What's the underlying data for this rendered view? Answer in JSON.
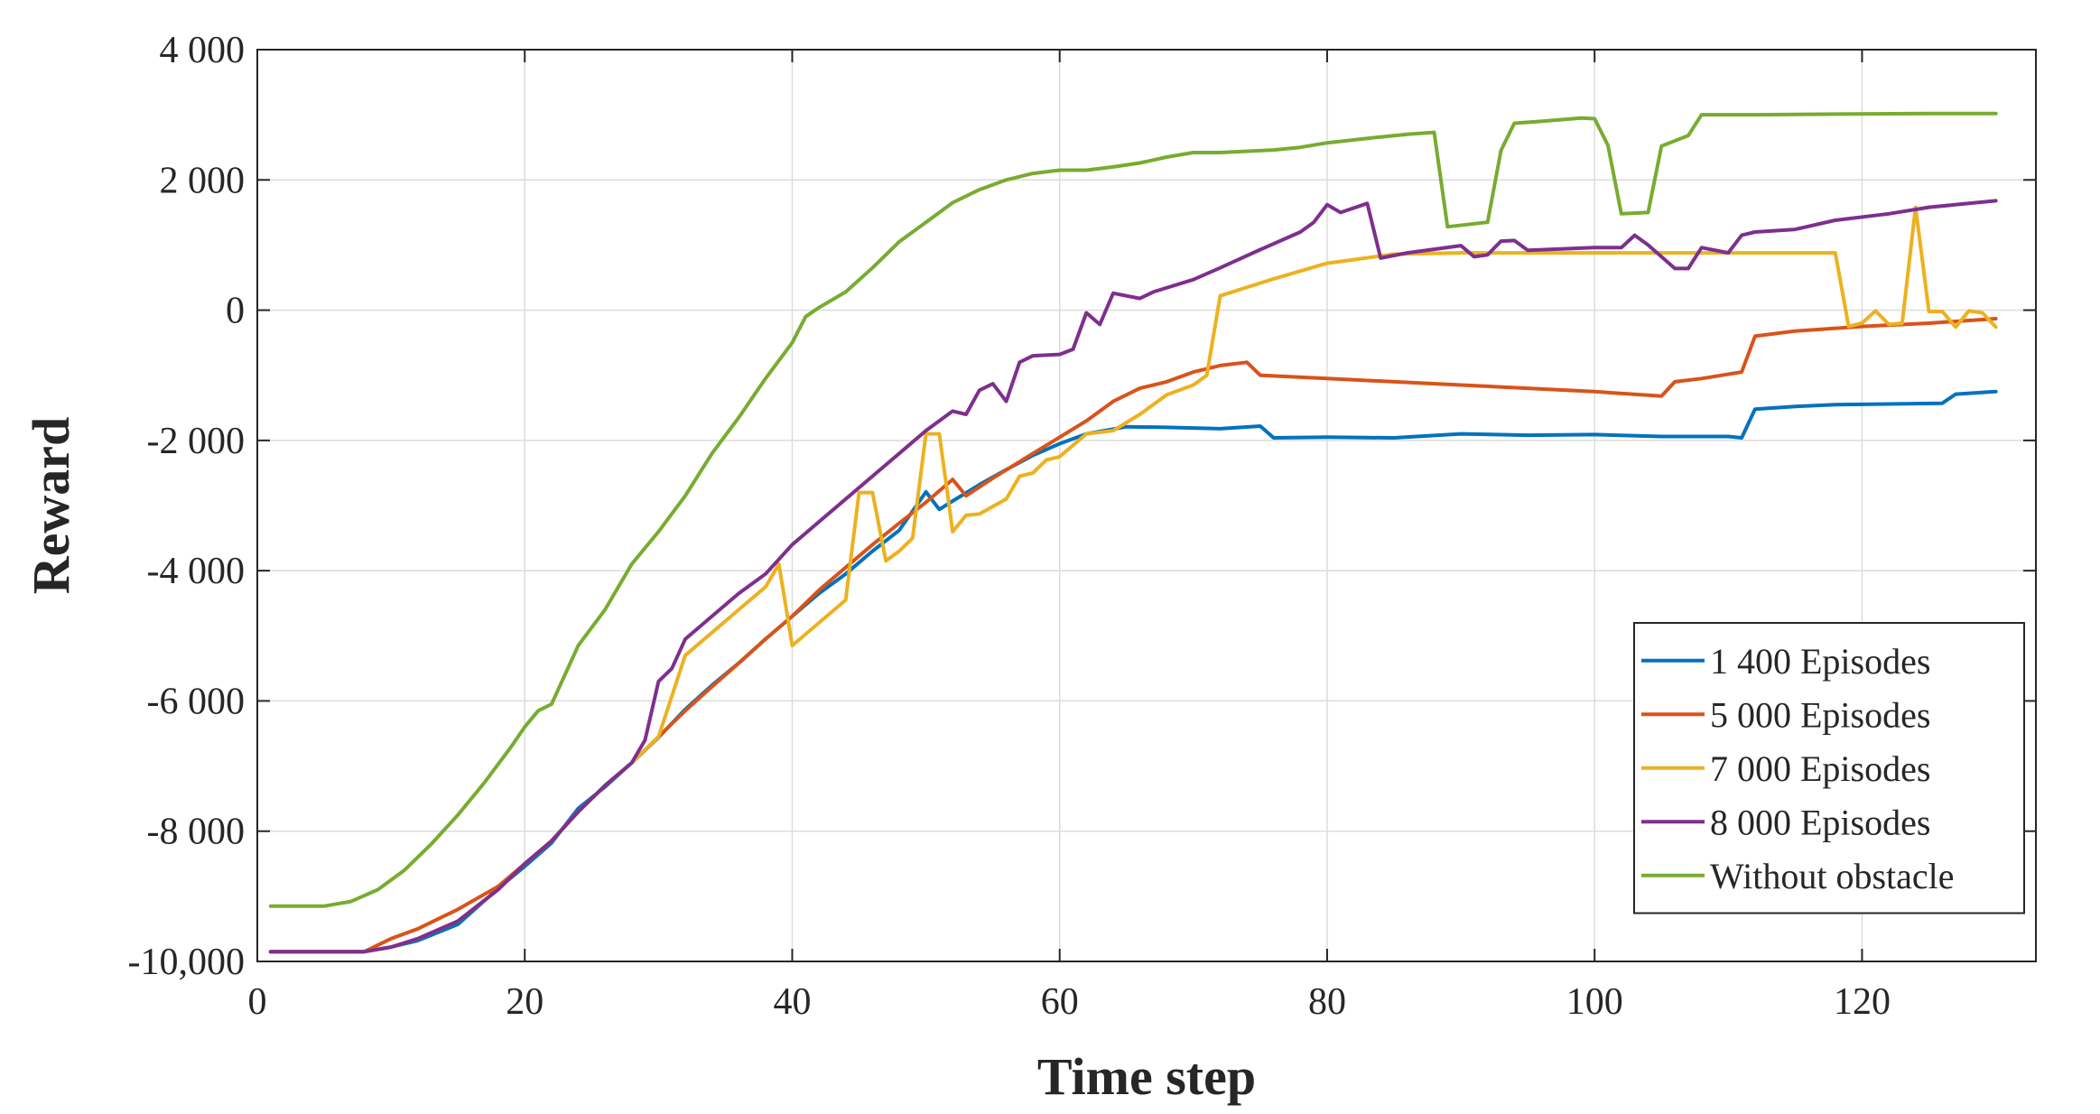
{
  "chart_data": {
    "type": "line",
    "xlabel": "Time step",
    "ylabel": "Reward",
    "xlim": [
      0,
      133
    ],
    "ylim": [
      -10000,
      4000
    ],
    "xticks": [
      0,
      20,
      40,
      60,
      80,
      100,
      120
    ],
    "xtick_labels": [
      "0",
      "20",
      "40",
      "60",
      "80",
      "100",
      "120"
    ],
    "yticks": [
      4000,
      2000,
      0,
      -2000,
      -4000,
      -6000,
      -8000,
      -10000
    ],
    "ytick_labels": [
      "4 000",
      "2 000",
      "0",
      "-2 000",
      "-4 000",
      "-6 000",
      "-8 000",
      "-10,000"
    ],
    "grid": true,
    "legend_position": "bottom-right",
    "series": [
      {
        "name": "1 400 Episodes",
        "color": "#0072BD",
        "points": [
          [
            1,
            -9850
          ],
          [
            8,
            -9850
          ],
          [
            10,
            -9780
          ],
          [
            12,
            -9680
          ],
          [
            15,
            -9430
          ],
          [
            18,
            -8880
          ],
          [
            20,
            -8540
          ],
          [
            22,
            -8180
          ],
          [
            24,
            -7650
          ],
          [
            26,
            -7320
          ],
          [
            28,
            -6950
          ],
          [
            30,
            -6560
          ],
          [
            32,
            -6130
          ],
          [
            34,
            -5760
          ],
          [
            36,
            -5420
          ],
          [
            38,
            -5050
          ],
          [
            40,
            -4700
          ],
          [
            42,
            -4350
          ],
          [
            44,
            -4050
          ],
          [
            46,
            -3700
          ],
          [
            48,
            -3380
          ],
          [
            50,
            -2790
          ],
          [
            51,
            -3060
          ],
          [
            52,
            -2930
          ],
          [
            54,
            -2680
          ],
          [
            56,
            -2450
          ],
          [
            58,
            -2230
          ],
          [
            60,
            -2050
          ],
          [
            62,
            -1900
          ],
          [
            65,
            -1790
          ],
          [
            68,
            -1800
          ],
          [
            72,
            -1820
          ],
          [
            75,
            -1780
          ],
          [
            76,
            -1960
          ],
          [
            80,
            -1950
          ],
          [
            85,
            -1960
          ],
          [
            90,
            -1900
          ],
          [
            95,
            -1920
          ],
          [
            100,
            -1910
          ],
          [
            105,
            -1940
          ],
          [
            110,
            -1940
          ],
          [
            111,
            -1960
          ],
          [
            112,
            -1520
          ],
          [
            115,
            -1480
          ],
          [
            118,
            -1450
          ],
          [
            122,
            -1440
          ],
          [
            126,
            -1430
          ],
          [
            127,
            -1290
          ],
          [
            130,
            -1250
          ]
        ]
      },
      {
        "name": "5 000 Episodes",
        "color": "#D95319",
        "points": [
          [
            1,
            -9850
          ],
          [
            8,
            -9850
          ],
          [
            10,
            -9650
          ],
          [
            12,
            -9500
          ],
          [
            15,
            -9200
          ],
          [
            18,
            -8850
          ],
          [
            20,
            -8500
          ],
          [
            22,
            -8150
          ],
          [
            24,
            -7700
          ],
          [
            26,
            -7300
          ],
          [
            28,
            -6950
          ],
          [
            30,
            -6550
          ],
          [
            32,
            -6150
          ],
          [
            34,
            -5780
          ],
          [
            36,
            -5420
          ],
          [
            38,
            -5050
          ],
          [
            40,
            -4700
          ],
          [
            42,
            -4300
          ],
          [
            44,
            -3950
          ],
          [
            46,
            -3600
          ],
          [
            48,
            -3270
          ],
          [
            50,
            -2950
          ],
          [
            52,
            -2600
          ],
          [
            53,
            -2850
          ],
          [
            55,
            -2580
          ],
          [
            58,
            -2200
          ],
          [
            60,
            -1950
          ],
          [
            62,
            -1700
          ],
          [
            64,
            -1400
          ],
          [
            66,
            -1200
          ],
          [
            68,
            -1100
          ],
          [
            70,
            -950
          ],
          [
            72,
            -850
          ],
          [
            74,
            -800
          ],
          [
            75,
            -1000
          ],
          [
            80,
            -1050
          ],
          [
            90,
            -1150
          ],
          [
            100,
            -1250
          ],
          [
            105,
            -1320
          ],
          [
            106,
            -1100
          ],
          [
            108,
            -1050
          ],
          [
            111,
            -950
          ],
          [
            112,
            -400
          ],
          [
            115,
            -320
          ],
          [
            120,
            -250
          ],
          [
            125,
            -200
          ],
          [
            130,
            -130
          ]
        ]
      },
      {
        "name": "7 000 Episodes",
        "color": "#EDB120",
        "points": [
          [
            1,
            -9850
          ],
          [
            8,
            -9850
          ],
          [
            10,
            -9780
          ],
          [
            12,
            -9650
          ],
          [
            15,
            -9380
          ],
          [
            18,
            -8900
          ],
          [
            20,
            -8500
          ],
          [
            22,
            -8150
          ],
          [
            24,
            -7700
          ],
          [
            26,
            -7300
          ],
          [
            28,
            -6950
          ],
          [
            30,
            -6550
          ],
          [
            32,
            -5300
          ],
          [
            34,
            -4950
          ],
          [
            36,
            -4600
          ],
          [
            38,
            -4250
          ],
          [
            39,
            -3900
          ],
          [
            40,
            -5150
          ],
          [
            42,
            -4800
          ],
          [
            44,
            -4450
          ],
          [
            45,
            -2800
          ],
          [
            46,
            -2800
          ],
          [
            47,
            -3850
          ],
          [
            48,
            -3700
          ],
          [
            49,
            -3500
          ],
          [
            50,
            -1900
          ],
          [
            51,
            -1900
          ],
          [
            52,
            -3400
          ],
          [
            53,
            -3150
          ],
          [
            54,
            -3130
          ],
          [
            56,
            -2900
          ],
          [
            57,
            -2550
          ],
          [
            58,
            -2500
          ],
          [
            59,
            -2300
          ],
          [
            60,
            -2250
          ],
          [
            62,
            -1900
          ],
          [
            64,
            -1850
          ],
          [
            66,
            -1600
          ],
          [
            68,
            -1300
          ],
          [
            70,
            -1150
          ],
          [
            71,
            -1000
          ],
          [
            72,
            220
          ],
          [
            76,
            480
          ],
          [
            80,
            720
          ],
          [
            85,
            860
          ],
          [
            90,
            880
          ],
          [
            100,
            880
          ],
          [
            110,
            880
          ],
          [
            118,
            880
          ],
          [
            119,
            -250
          ],
          [
            120,
            -200
          ],
          [
            121,
            -10
          ],
          [
            122,
            -220
          ],
          [
            123,
            -200
          ],
          [
            124,
            1580
          ],
          [
            125,
            -20
          ],
          [
            126,
            -20
          ],
          [
            127,
            -260
          ],
          [
            128,
            -10
          ],
          [
            129,
            -40
          ],
          [
            130,
            -260
          ]
        ]
      },
      {
        "name": "8 000 Episodes",
        "color": "#7E2F8E",
        "points": [
          [
            1,
            -9850
          ],
          [
            8,
            -9850
          ],
          [
            10,
            -9780
          ],
          [
            12,
            -9650
          ],
          [
            15,
            -9380
          ],
          [
            18,
            -8900
          ],
          [
            20,
            -8500
          ],
          [
            22,
            -8150
          ],
          [
            24,
            -7700
          ],
          [
            26,
            -7300
          ],
          [
            28,
            -6950
          ],
          [
            29,
            -6600
          ],
          [
            30,
            -5700
          ],
          [
            31,
            -5500
          ],
          [
            32,
            -5050
          ],
          [
            34,
            -4700
          ],
          [
            36,
            -4350
          ],
          [
            38,
            -4050
          ],
          [
            40,
            -3600
          ],
          [
            42,
            -3250
          ],
          [
            44,
            -2900
          ],
          [
            46,
            -2550
          ],
          [
            48,
            -2200
          ],
          [
            50,
            -1850
          ],
          [
            52,
            -1550
          ],
          [
            53,
            -1600
          ],
          [
            54,
            -1230
          ],
          [
            55,
            -1130
          ],
          [
            56,
            -1400
          ],
          [
            57,
            -800
          ],
          [
            58,
            -700
          ],
          [
            60,
            -680
          ],
          [
            61,
            -600
          ],
          [
            62,
            -40
          ],
          [
            63,
            -220
          ],
          [
            64,
            260
          ],
          [
            66,
            180
          ],
          [
            67,
            280
          ],
          [
            70,
            470
          ],
          [
            72,
            650
          ],
          [
            75,
            930
          ],
          [
            78,
            1200
          ],
          [
            79,
            1350
          ],
          [
            80,
            1620
          ],
          [
            81,
            1500
          ],
          [
            83,
            1640
          ],
          [
            84,
            800
          ],
          [
            86,
            880
          ],
          [
            90,
            990
          ],
          [
            91,
            820
          ],
          [
            92,
            850
          ],
          [
            93,
            1060
          ],
          [
            94,
            1070
          ],
          [
            95,
            920
          ],
          [
            100,
            960
          ],
          [
            102,
            960
          ],
          [
            103,
            1150
          ],
          [
            104,
            1000
          ],
          [
            106,
            640
          ],
          [
            107,
            640
          ],
          [
            108,
            960
          ],
          [
            110,
            880
          ],
          [
            111,
            1150
          ],
          [
            112,
            1200
          ],
          [
            115,
            1240
          ],
          [
            118,
            1380
          ],
          [
            122,
            1480
          ],
          [
            125,
            1580
          ],
          [
            130,
            1680
          ]
        ]
      },
      {
        "name": "Without obstacle",
        "color": "#77AC30",
        "points": [
          [
            1,
            -9150
          ],
          [
            5,
            -9150
          ],
          [
            7,
            -9080
          ],
          [
            9,
            -8900
          ],
          [
            11,
            -8600
          ],
          [
            13,
            -8200
          ],
          [
            15,
            -7750
          ],
          [
            17,
            -7250
          ],
          [
            19,
            -6700
          ],
          [
            20,
            -6400
          ],
          [
            21,
            -6150
          ],
          [
            22,
            -6050
          ],
          [
            24,
            -5150
          ],
          [
            26,
            -4600
          ],
          [
            28,
            -3900
          ],
          [
            30,
            -3400
          ],
          [
            32,
            -2850
          ],
          [
            34,
            -2200
          ],
          [
            36,
            -1650
          ],
          [
            38,
            -1050
          ],
          [
            40,
            -500
          ],
          [
            41,
            -100
          ],
          [
            42,
            40
          ],
          [
            44,
            280
          ],
          [
            46,
            650
          ],
          [
            48,
            1050
          ],
          [
            50,
            1350
          ],
          [
            52,
            1650
          ],
          [
            54,
            1850
          ],
          [
            56,
            2000
          ],
          [
            58,
            2100
          ],
          [
            60,
            2150
          ],
          [
            62,
            2150
          ],
          [
            64,
            2200
          ],
          [
            66,
            2260
          ],
          [
            68,
            2350
          ],
          [
            70,
            2420
          ],
          [
            72,
            2420
          ],
          [
            76,
            2460
          ],
          [
            78,
            2500
          ],
          [
            80,
            2570
          ],
          [
            84,
            2660
          ],
          [
            86,
            2700
          ],
          [
            88,
            2730
          ],
          [
            89,
            1280
          ],
          [
            92,
            1350
          ],
          [
            93,
            2450
          ],
          [
            94,
            2870
          ],
          [
            96,
            2900
          ],
          [
            99,
            2950
          ],
          [
            100,
            2940
          ],
          [
            101,
            2530
          ],
          [
            102,
            1480
          ],
          [
            104,
            1500
          ],
          [
            105,
            2520
          ],
          [
            107,
            2680
          ],
          [
            108,
            3000
          ],
          [
            112,
            3000
          ],
          [
            118,
            3010
          ],
          [
            125,
            3020
          ],
          [
            130,
            3020
          ]
        ]
      }
    ]
  }
}
